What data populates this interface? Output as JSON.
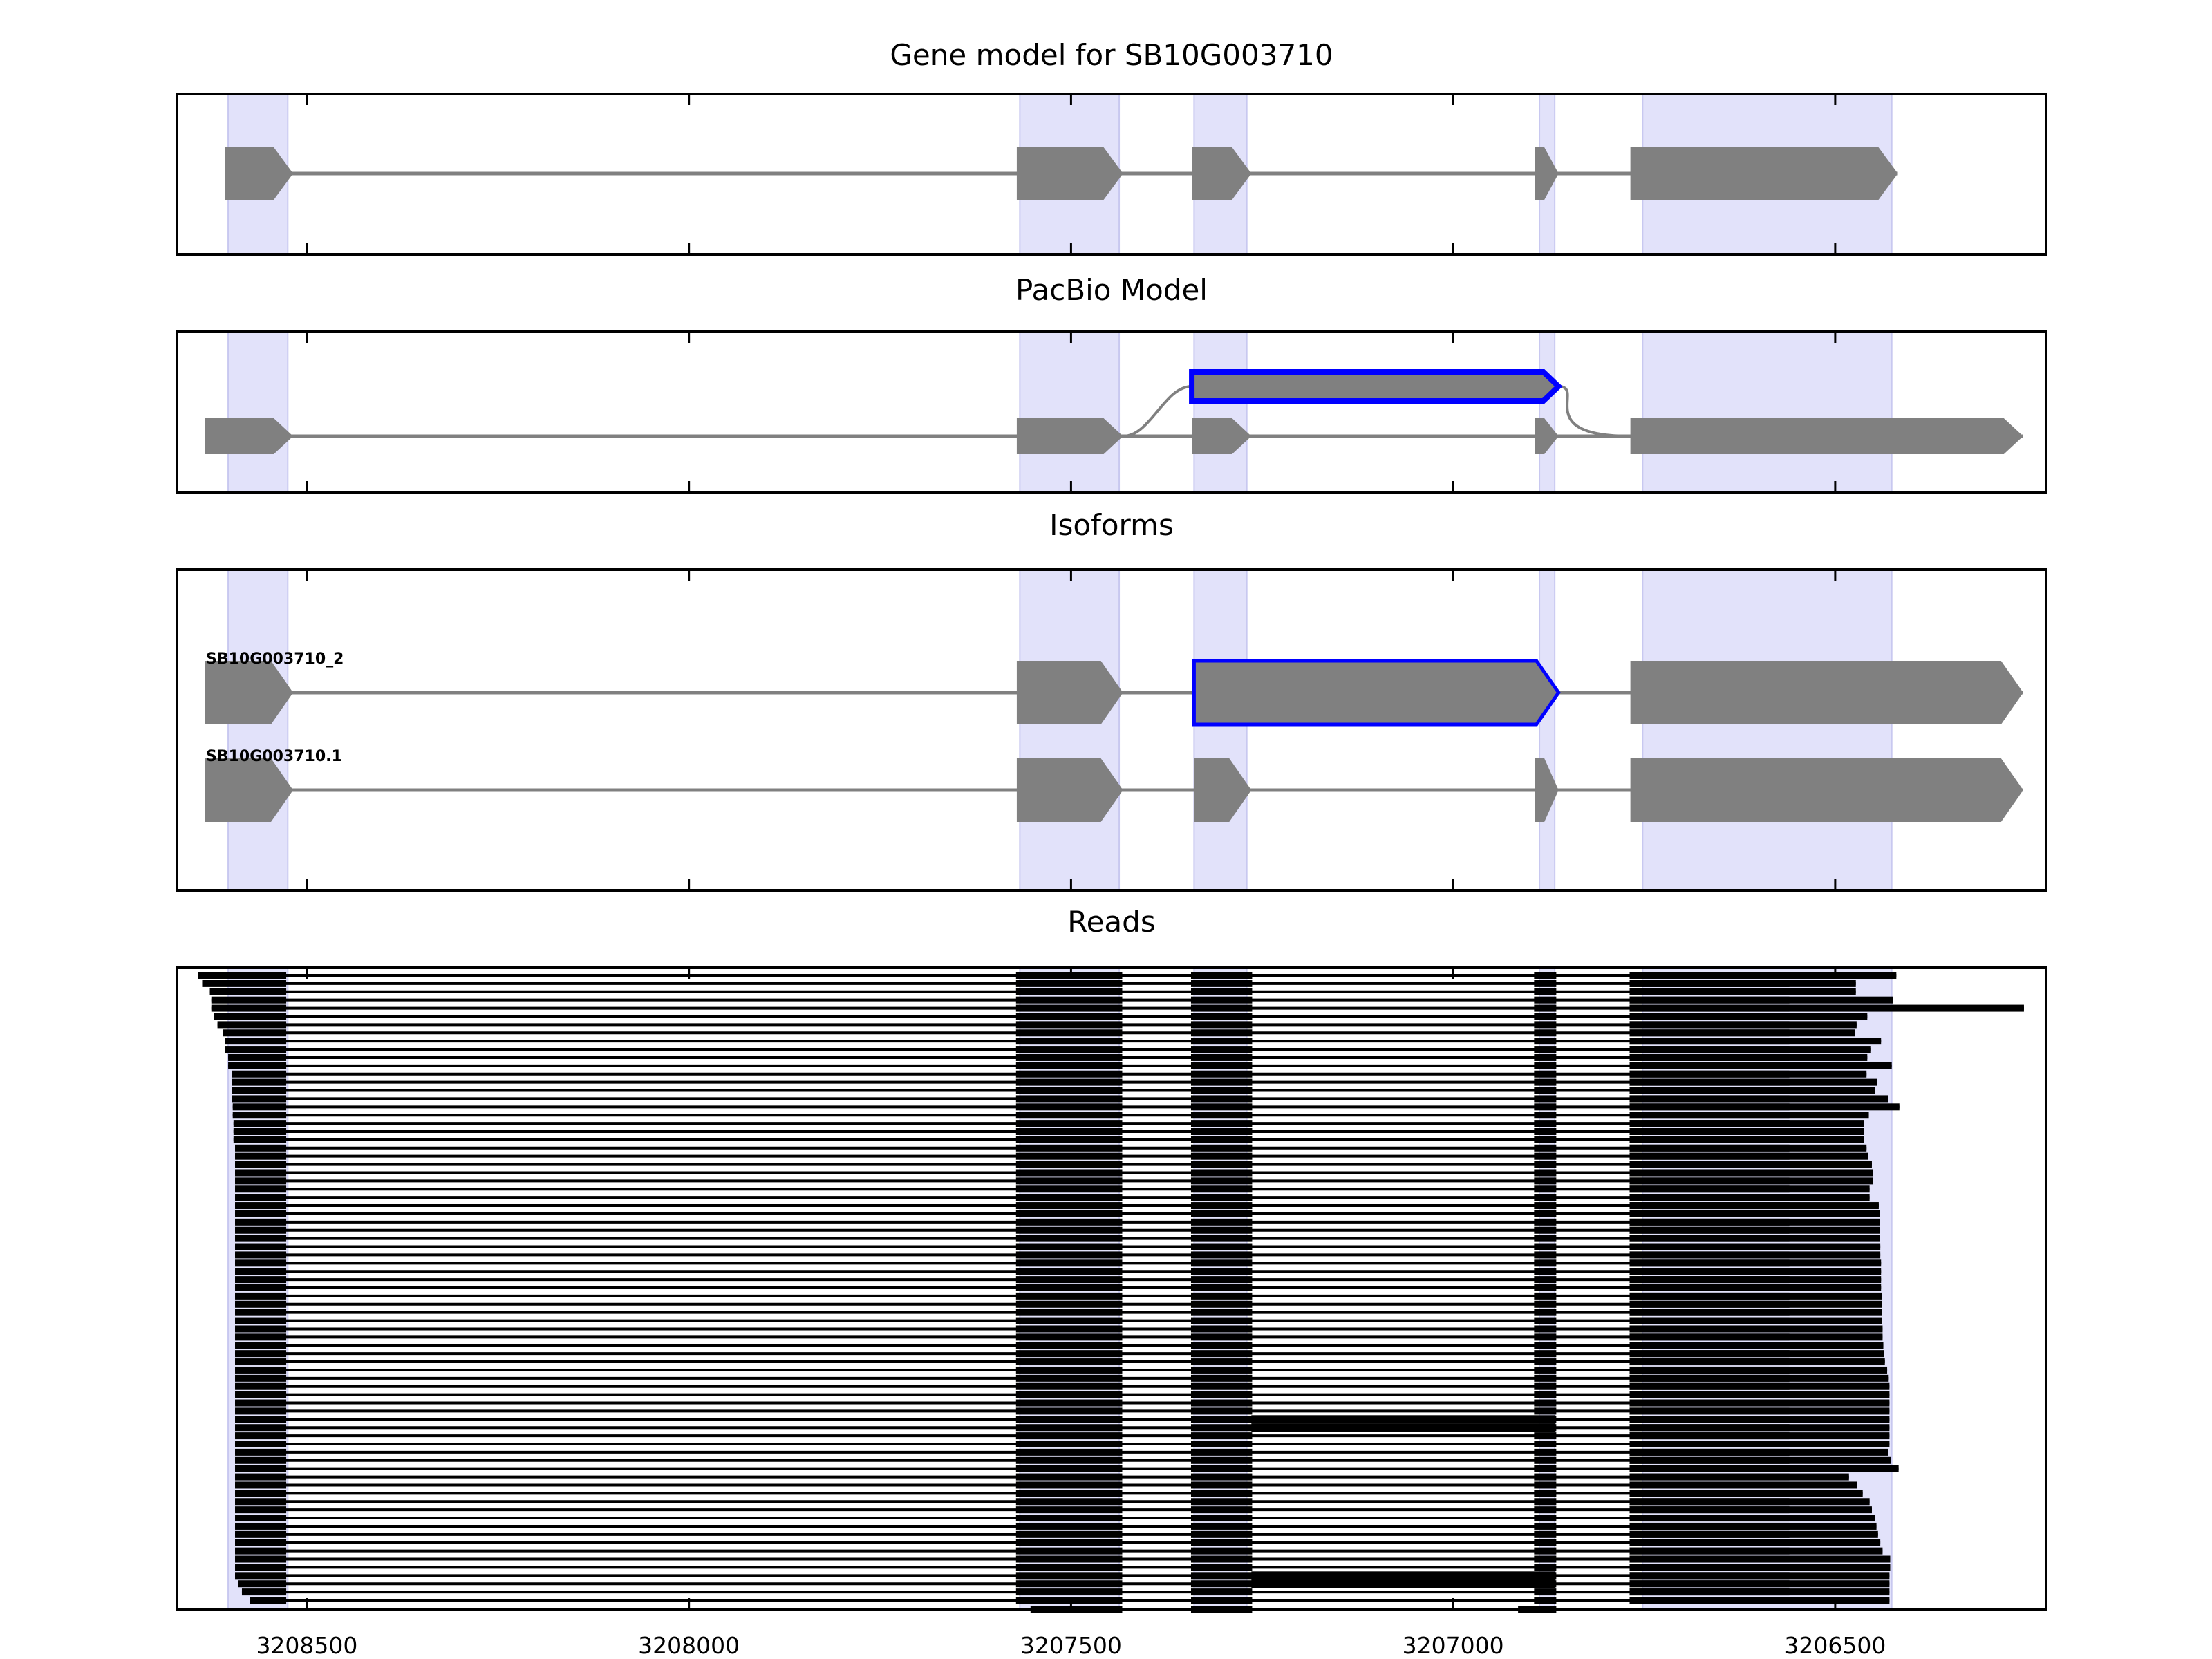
{
  "figure": {
    "x_axis": {
      "lim": [
        3208670,
        3206224
      ],
      "ticks": [
        3208500,
        3208000,
        3207500,
        3207000,
        3206500
      ],
      "tick_labels": [
        "3208500",
        "3208000",
        "3207500",
        "3207000",
        "3206500"
      ]
    },
    "highlight_color": "#e2e2fa",
    "highlight_regions": [
      [
        3208603,
        3208525
      ],
      [
        3207567,
        3207437
      ],
      [
        3207339,
        3207270
      ],
      [
        3206887,
        3206867
      ],
      [
        3206752,
        3206426
      ]
    ]
  },
  "panels": {
    "gene_model": {
      "title": "Gene model for SB10G003710",
      "rows": [
        {
          "strand": "minus",
          "exons": [
            [
              3208607,
              3208518
            ],
            [
              3207571,
              3207432
            ],
            [
              3207342,
              3207264
            ],
            [
              3206893,
              3206862
            ],
            [
              3206768,
              3206418
            ]
          ]
        }
      ]
    },
    "pacbio_model": {
      "title": "PacBio Model",
      "rows": [
        {
          "strand": "minus",
          "exons": [
            [
              3208633,
              3208518
            ],
            [
              3207571,
              3207432
            ],
            [
              3207342,
              3207264
            ],
            [
              3206893,
              3206862
            ],
            [
              3206768,
              3206254
            ]
          ]
        }
      ],
      "alternative_exon": {
        "range": [
          3207342,
          3206862
        ],
        "outline_color": "#0000ff"
      }
    },
    "isoforms": {
      "title": "Isoforms",
      "rows": [
        {
          "label": "SB10G003710_2",
          "strand": "minus",
          "exons": [
            [
              3208633,
              3208518
            ],
            [
              3207571,
              3207432
            ],
            [
              3207339,
              3206862,
              "alt"
            ],
            [
              3206768,
              3206254
            ]
          ]
        },
        {
          "label": "SB10G003710.1",
          "strand": "minus",
          "exons": [
            [
              3208633,
              3208518
            ],
            [
              3207571,
              3207432
            ],
            [
              3207339,
              3207264
            ],
            [
              3206893,
              3206862
            ],
            [
              3206768,
              3206254
            ]
          ]
        }
      ]
    },
    "reads": {
      "title": "Reads",
      "read_count": 77,
      "exon_blocks": [
        [
          3207572,
          3207433
        ],
        [
          3207343,
          3207263
        ],
        [
          3206894,
          3206865
        ],
        [
          3206769,
          3206560
        ]
      ],
      "first_exon_start": [
        3208642,
        3208637,
        3208627,
        3208625,
        3208625,
        3208622,
        3208617,
        3208610,
        3208607,
        3208607,
        3208603,
        3208603,
        3208598,
        3208598,
        3208598,
        3208598,
        3208597,
        3208597,
        3208596,
        3208596,
        3208596,
        3208594,
        3208594,
        3208594,
        3208594,
        3208594,
        3208594,
        3208594,
        3208594,
        3208594,
        3208594,
        3208594,
        3208594,
        3208594,
        3208594,
        3208594,
        3208594,
        3208594,
        3208594,
        3208594,
        3208594,
        3208594,
        3208594,
        3208594,
        3208594,
        3208594,
        3208594,
        3208594,
        3208594,
        3208594,
        3208594,
        3208594,
        3208594,
        3208594,
        3208594,
        3208594,
        3208594,
        3208594,
        3208594,
        3208594,
        3208594,
        3208594,
        3208594,
        3208594,
        3208594,
        3208594,
        3208594,
        3208594,
        3208594,
        3208594,
        3208594,
        3208594,
        3208594,
        3208594,
        3208590,
        3208585,
        3208575
      ],
      "read_end": [
        3206420,
        3206473,
        3206473,
        3206424,
        3206253,
        3206458,
        3206472,
        3206474,
        3206440,
        3206454,
        3206458,
        3206426,
        3206459,
        3206445,
        3206448,
        3206431,
        3206416,
        3206456,
        3206462,
        3206462,
        3206462,
        3206459,
        3206457,
        3206452,
        3206451,
        3206451,
        3206455,
        3206455,
        3206443,
        3206442,
        3206442,
        3206442,
        3206442,
        3206441,
        3206441,
        3206440,
        3206440,
        3206440,
        3206440,
        3206439,
        3206439,
        3206439,
        3206439,
        3206438,
        3206438,
        3206437,
        3206436,
        3206435,
        3206432,
        3206430,
        3206429,
        3206429,
        3206429,
        3206429,
        3206429,
        3206429,
        3206429,
        3206429,
        3206431,
        3206427,
        3206417,
        3206482,
        3206471,
        3206464,
        3206455,
        3206452,
        3206448,
        3206446,
        3206444,
        3206441,
        3206438,
        3206428,
        3206428,
        3206429,
        3206429,
        3206429,
        3206429
      ],
      "retained_intron_rows": [
        54,
        55,
        73,
        74
      ],
      "partial_reads": [
        {
          "row": 76,
          "segments": [
            [
              3207553,
              3207433
            ],
            [
              3207343,
              3207263
            ]
          ]
        },
        {
          "row": 76,
          "segments": [
            [
              3206915,
              3206865
            ]
          ]
        }
      ]
    }
  }
}
